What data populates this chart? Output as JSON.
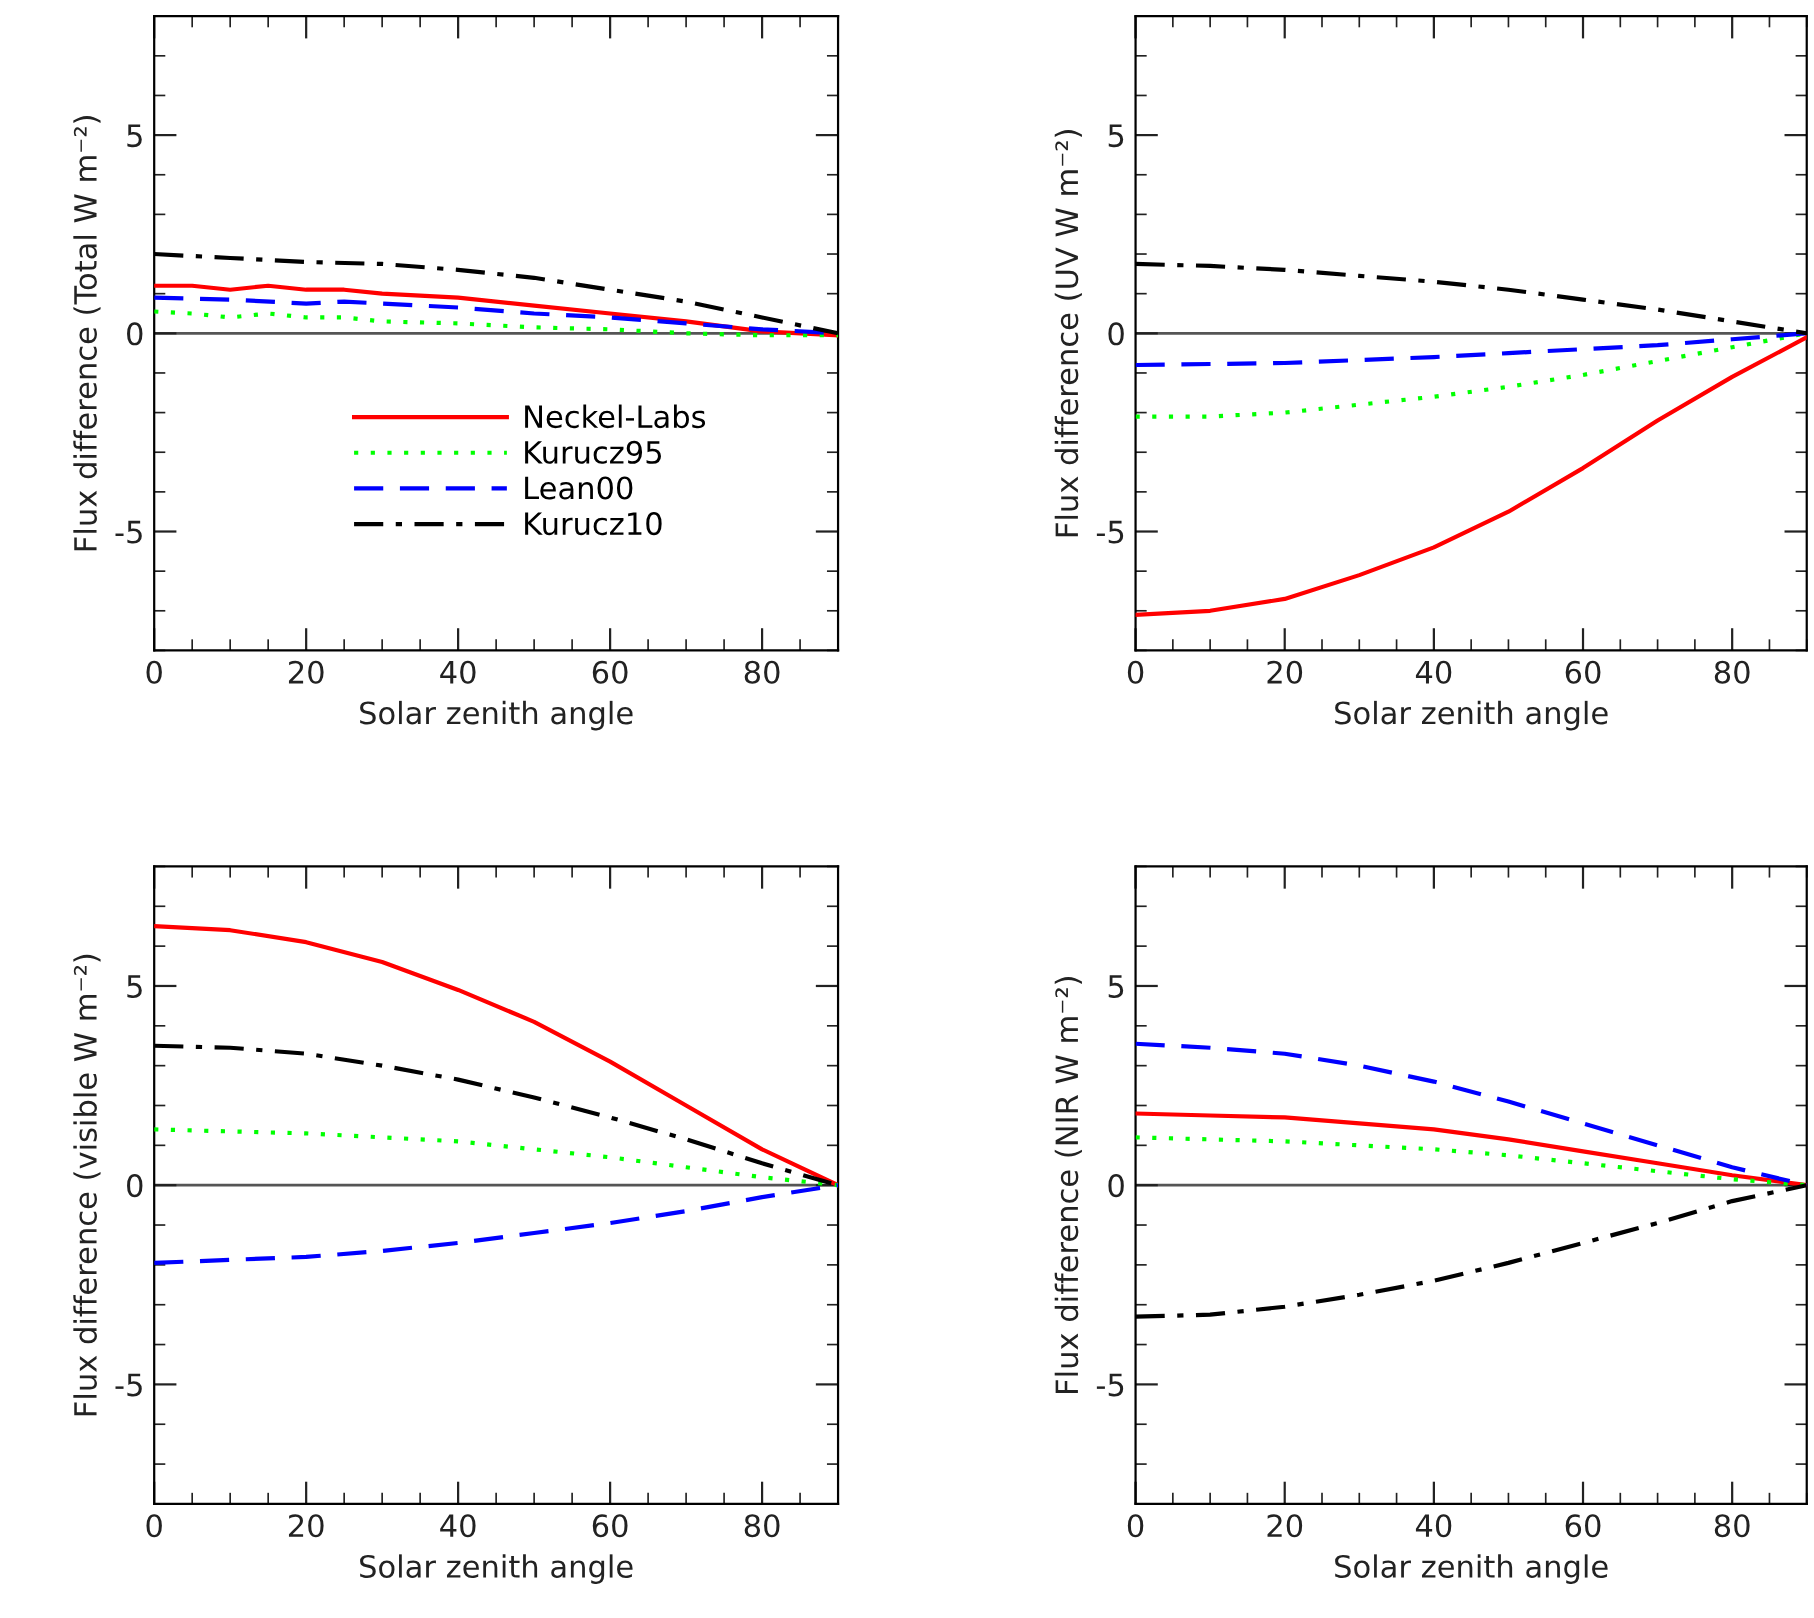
{
  "chart_data": [
    {
      "type": "line",
      "xlabel": "Solar zenith angle",
      "ylabel": "Flux difference (Total W m⁻²)",
      "xlim": [
        0,
        90
      ],
      "xticks": [
        0,
        20,
        40,
        60,
        80
      ],
      "ylim": [
        -8,
        8
      ],
      "yticks": [
        -5,
        0,
        5
      ],
      "legend": "bottom",
      "ref_lines": [
        {
          "axis": "y",
          "value": 0,
          "color": "#555555"
        }
      ],
      "series": [
        {
          "name": "Neckel-Labs",
          "color": "#ff0000",
          "line_style": "solid",
          "x": [
            0,
            5,
            10,
            15,
            20,
            25,
            30,
            40,
            50,
            60,
            70,
            80,
            90
          ],
          "values": [
            1.2,
            1.2,
            1.1,
            1.2,
            1.1,
            1.1,
            1.0,
            0.9,
            0.7,
            0.5,
            0.3,
            0.05,
            -0.05
          ]
        },
        {
          "name": "Kurucz95",
          "color": "#00ff00",
          "line_style": "dotted",
          "x": [
            0,
            5,
            10,
            15,
            20,
            25,
            30,
            40,
            50,
            60,
            70,
            80,
            90
          ],
          "values": [
            0.55,
            0.5,
            0.4,
            0.5,
            0.4,
            0.4,
            0.3,
            0.25,
            0.15,
            0.1,
            0.0,
            -0.05,
            -0.05
          ]
        },
        {
          "name": "Lean00",
          "color": "#0000ff",
          "line_style": "dashed",
          "x": [
            0,
            10,
            20,
            25,
            30,
            40,
            50,
            60,
            70,
            80,
            90
          ],
          "values": [
            0.9,
            0.85,
            0.75,
            0.8,
            0.75,
            0.65,
            0.5,
            0.4,
            0.25,
            0.1,
            0
          ]
        },
        {
          "name": "Kurucz10",
          "color": "#000000",
          "line_style": "dashdot",
          "x": [
            0,
            10,
            20,
            30,
            40,
            50,
            60,
            70,
            80,
            90
          ],
          "values": [
            2.0,
            1.9,
            1.8,
            1.75,
            1.6,
            1.4,
            1.1,
            0.8,
            0.4,
            0
          ]
        }
      ]
    },
    {
      "type": "line",
      "xlabel": "Solar zenith angle",
      "ylabel": "Flux difference (UV W m⁻²)",
      "xlim": [
        0,
        90
      ],
      "xticks": [
        0,
        20,
        40,
        60,
        80
      ],
      "ylim": [
        -8,
        8
      ],
      "yticks": [
        -5,
        0,
        5
      ],
      "ref_lines": [
        {
          "axis": "y",
          "value": 0,
          "color": "#555555"
        }
      ],
      "series": [
        {
          "color": "#ff0000",
          "line_style": "solid",
          "x": [
            0,
            10,
            20,
            30,
            40,
            50,
            60,
            70,
            80,
            90
          ],
          "values": [
            -7.1,
            -7.0,
            -6.7,
            -6.1,
            -5.4,
            -4.5,
            -3.4,
            -2.2,
            -1.1,
            -0.1
          ]
        },
        {
          "color": "#00ff00",
          "line_style": "dotted",
          "x": [
            0,
            10,
            20,
            30,
            40,
            50,
            60,
            70,
            80,
            90
          ],
          "values": [
            -2.1,
            -2.1,
            -2.0,
            -1.8,
            -1.6,
            -1.35,
            -1.05,
            -0.7,
            -0.35,
            0
          ]
        },
        {
          "color": "#0000ff",
          "line_style": "dashed",
          "x": [
            0,
            20,
            40,
            50,
            60,
            70,
            80,
            90
          ],
          "values": [
            -0.8,
            -0.75,
            -0.6,
            -0.5,
            -0.4,
            -0.3,
            -0.15,
            0
          ]
        },
        {
          "color": "#000000",
          "line_style": "dashdot",
          "x": [
            0,
            10,
            20,
            30,
            40,
            50,
            60,
            70,
            80,
            90
          ],
          "values": [
            1.75,
            1.7,
            1.6,
            1.45,
            1.3,
            1.1,
            0.85,
            0.6,
            0.3,
            0
          ]
        }
      ]
    },
    {
      "type": "line",
      "xlabel": "Solar zenith angle",
      "ylabel": "Flux difference (visible W m⁻²)",
      "xlim": [
        0,
        90
      ],
      "xticks": [
        0,
        20,
        40,
        60,
        80
      ],
      "ylim": [
        -8,
        8
      ],
      "yticks": [
        -5,
        0,
        5
      ],
      "ref_lines": [
        {
          "axis": "y",
          "value": 0,
          "color": "#555555"
        }
      ],
      "series": [
        {
          "color": "#ff0000",
          "line_style": "solid",
          "x": [
            0,
            10,
            20,
            30,
            40,
            50,
            60,
            70,
            80,
            90
          ],
          "values": [
            6.5,
            6.4,
            6.1,
            5.6,
            4.9,
            4.1,
            3.1,
            2.0,
            0.9,
            0
          ]
        },
        {
          "color": "#00ff00",
          "line_style": "dotted",
          "x": [
            0,
            20,
            40,
            50,
            60,
            70,
            80,
            90
          ],
          "values": [
            1.4,
            1.3,
            1.1,
            0.9,
            0.7,
            0.45,
            0.2,
            0
          ]
        },
        {
          "color": "#0000ff",
          "line_style": "dashed",
          "x": [
            0,
            20,
            30,
            40,
            50,
            60,
            70,
            80,
            90
          ],
          "values": [
            -1.95,
            -1.8,
            -1.65,
            -1.45,
            -1.2,
            -0.95,
            -0.65,
            -0.3,
            0
          ]
        },
        {
          "color": "#000000",
          "line_style": "dashdot",
          "x": [
            0,
            10,
            20,
            30,
            40,
            50,
            60,
            70,
            80,
            90
          ],
          "values": [
            3.5,
            3.45,
            3.3,
            3.0,
            2.65,
            2.2,
            1.7,
            1.15,
            0.55,
            0
          ]
        }
      ]
    },
    {
      "type": "line",
      "xlabel": "Solar zenith angle",
      "ylabel": "Flux difference (NIR W m⁻²)",
      "xlim": [
        0,
        90
      ],
      "xticks": [
        0,
        20,
        40,
        60,
        80
      ],
      "ylim": [
        -8,
        8
      ],
      "yticks": [
        -5,
        0,
        5
      ],
      "ref_lines": [
        {
          "axis": "y",
          "value": 0,
          "color": "#555555"
        }
      ],
      "series": [
        {
          "color": "#ff0000",
          "line_style": "solid",
          "x": [
            0,
            10,
            20,
            30,
            40,
            50,
            60,
            70,
            80,
            90
          ],
          "values": [
            1.8,
            1.75,
            1.7,
            1.55,
            1.4,
            1.15,
            0.85,
            0.55,
            0.25,
            0
          ]
        },
        {
          "color": "#00ff00",
          "line_style": "dotted",
          "x": [
            0,
            20,
            40,
            50,
            60,
            70,
            80,
            90
          ],
          "values": [
            1.2,
            1.1,
            0.9,
            0.75,
            0.55,
            0.35,
            0.15,
            0
          ]
        },
        {
          "color": "#0000ff",
          "line_style": "dashed",
          "x": [
            0,
            10,
            20,
            30,
            40,
            50,
            60,
            70,
            80,
            90
          ],
          "values": [
            3.55,
            3.45,
            3.3,
            3.0,
            2.6,
            2.1,
            1.55,
            1.0,
            0.45,
            0
          ]
        },
        {
          "color": "#000000",
          "line_style": "dashdot",
          "x": [
            0,
            10,
            20,
            30,
            40,
            50,
            60,
            70,
            80,
            90
          ],
          "values": [
            -3.3,
            -3.25,
            -3.05,
            -2.75,
            -2.4,
            -1.95,
            -1.45,
            -0.95,
            -0.4,
            0
          ]
        }
      ]
    }
  ]
}
